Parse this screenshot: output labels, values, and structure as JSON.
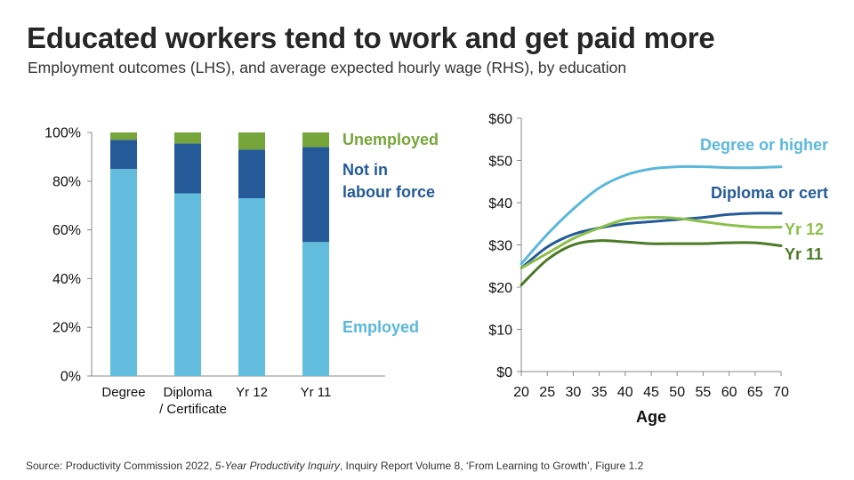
{
  "header": {
    "title": "Educated workers tend to work and get paid more",
    "subtitle": "Employment outcomes (LHS), and average expected hourly wage (RHS), by education"
  },
  "source": {
    "prefix": "Source: Productivity Commission 2022, ",
    "italic": "5-Year Productivity Inquiry",
    "suffix": ", Inquiry Report Volume 8, ‘From Learning to Growth’, Figure 1.2"
  },
  "colors": {
    "employed": "#63bddf",
    "nilf": "#255a99",
    "unemployed": "#77a53a",
    "degree": "#5ab8dc",
    "diploma": "#255a99",
    "yr12": "#8cbf4a",
    "yr11": "#4a7a26"
  },
  "chart_data": [
    {
      "type": "bar",
      "stacked": true,
      "categories": [
        [
          "Degree"
        ],
        [
          "Diploma",
          "/ Certificate"
        ],
        [
          "Yr 12"
        ],
        [
          "Yr 11"
        ]
      ],
      "series": [
        {
          "name": "Employed",
          "values": [
            85,
            75,
            73,
            55
          ]
        },
        {
          "name": "Not in labour force",
          "label_lines": [
            "Not in",
            "labour force"
          ],
          "values": [
            12,
            20.5,
            20,
            39
          ]
        },
        {
          "name": "Unemployed",
          "values": [
            3,
            4.5,
            7,
            6
          ]
        }
      ],
      "yticks": [
        "0%",
        "20%",
        "40%",
        "60%",
        "80%",
        "100%"
      ],
      "ylim": [
        0,
        100
      ]
    },
    {
      "type": "line",
      "xlabel": "Age",
      "xlim": [
        20,
        70
      ],
      "ylim": [
        0,
        60
      ],
      "xticks": [
        "20",
        "25",
        "30",
        "35",
        "40",
        "45",
        "50",
        "55",
        "60",
        "65",
        "70"
      ],
      "yticks": [
        "$0",
        "$10",
        "$20",
        "$30",
        "$40",
        "$50",
        "$60"
      ],
      "x": [
        20,
        25,
        30,
        35,
        40,
        45,
        50,
        55,
        60,
        65,
        70
      ],
      "series": [
        {
          "name": "Degree or higher",
          "values": [
            25.5,
            32.5,
            38.5,
            43.5,
            46.5,
            48,
            48.5,
            48.5,
            48.3,
            48.3,
            48.5
          ]
        },
        {
          "name": "Diploma or cert",
          "values": [
            24.5,
            29.5,
            32.5,
            34,
            35,
            35.5,
            36,
            36.5,
            37.2,
            37.5,
            37.5
          ]
        },
        {
          "name": "Yr 12",
          "values": [
            24.5,
            28,
            31.5,
            34,
            36,
            36.5,
            36.3,
            35.5,
            34.7,
            34.2,
            34.2
          ]
        },
        {
          "name": "Yr 11",
          "values": [
            20.5,
            26.5,
            30,
            31,
            30.7,
            30.3,
            30.3,
            30.3,
            30.5,
            30.5,
            29.8
          ]
        }
      ]
    }
  ]
}
